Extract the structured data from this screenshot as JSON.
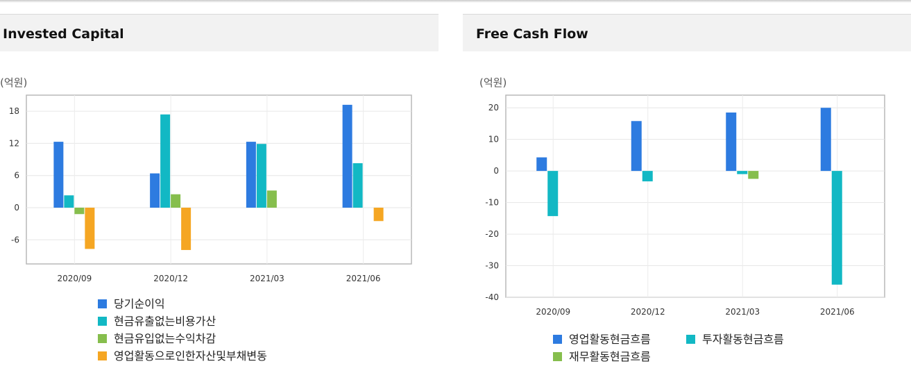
{
  "chart_data": [
    {
      "type": "bar",
      "title": "Invested Capital",
      "unit": "(억원)",
      "categories": [
        "2020/09",
        "2020/12",
        "2021/03",
        "2021/06"
      ],
      "y_ticks": [
        18,
        12,
        6,
        0,
        -6
      ],
      "ylim": [
        -10.5,
        21
      ],
      "grid": true,
      "legend_position": "bottom",
      "series": [
        {
          "name": "당기순이익",
          "color": "#2d7be0",
          "values": [
            12.3,
            6.4,
            12.3,
            19.2
          ]
        },
        {
          "name": "현금유출없는비용가산",
          "color": "#12b8c4",
          "values": [
            2.3,
            17.4,
            11.9,
            8.3
          ]
        },
        {
          "name": "현금유입없는수익차감",
          "color": "#86be4d",
          "values": [
            -1.2,
            2.5,
            3.2,
            0.0
          ]
        },
        {
          "name": "영업활동으로인한자산및부채변동",
          "color": "#f5a623",
          "values": [
            -7.7,
            -7.9,
            0.0,
            -2.5
          ]
        }
      ],
      "legend_layout": [
        [
          0
        ],
        [
          1
        ],
        [
          2
        ],
        [
          3
        ]
      ]
    },
    {
      "type": "bar",
      "title": "Free Cash Flow",
      "unit": "(억원)",
      "categories": [
        "2020/09",
        "2020/12",
        "2021/03",
        "2021/06"
      ],
      "y_ticks": [
        20,
        10,
        0,
        -10,
        -20,
        -30,
        -40
      ],
      "ylim": [
        -40,
        24
      ],
      "grid": true,
      "legend_position": "bottom",
      "series": [
        {
          "name": "영업활동현금흐름",
          "color": "#2d7be0",
          "values": [
            4.3,
            15.8,
            18.5,
            20.0
          ]
        },
        {
          "name": "투자활동현금흐름",
          "color": "#12b8c4",
          "values": [
            -14.3,
            -3.3,
            -1.0,
            -36.0
          ]
        },
        {
          "name": "재무활동현금흐름",
          "color": "#86be4d",
          "values": [
            0.0,
            0.0,
            -2.5,
            0.0
          ]
        }
      ],
      "legend_layout": [
        [
          0,
          1
        ],
        [
          2
        ]
      ]
    }
  ]
}
